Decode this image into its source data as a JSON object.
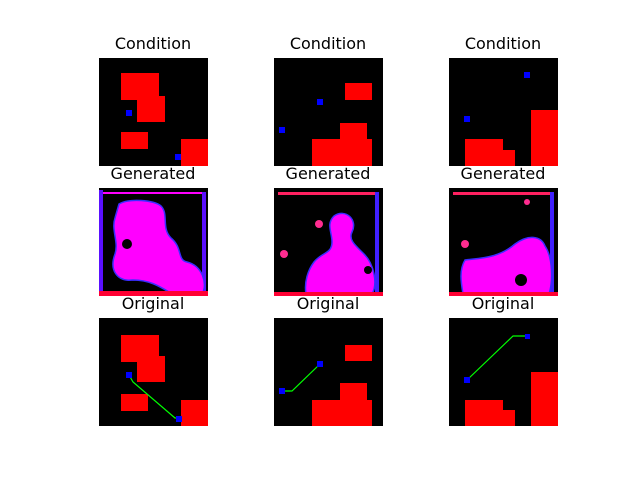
{
  "rows": [
    {
      "title": "Condition"
    },
    {
      "title": "Generated"
    },
    {
      "title": "Original"
    }
  ],
  "colors": {
    "background": "#000000",
    "obstacle": "#ff0000",
    "endpoint": "#0000ff",
    "path": "#00ff00",
    "generated_fill": "#ff00ff",
    "generated_edge": "#4b00ff"
  }
}
